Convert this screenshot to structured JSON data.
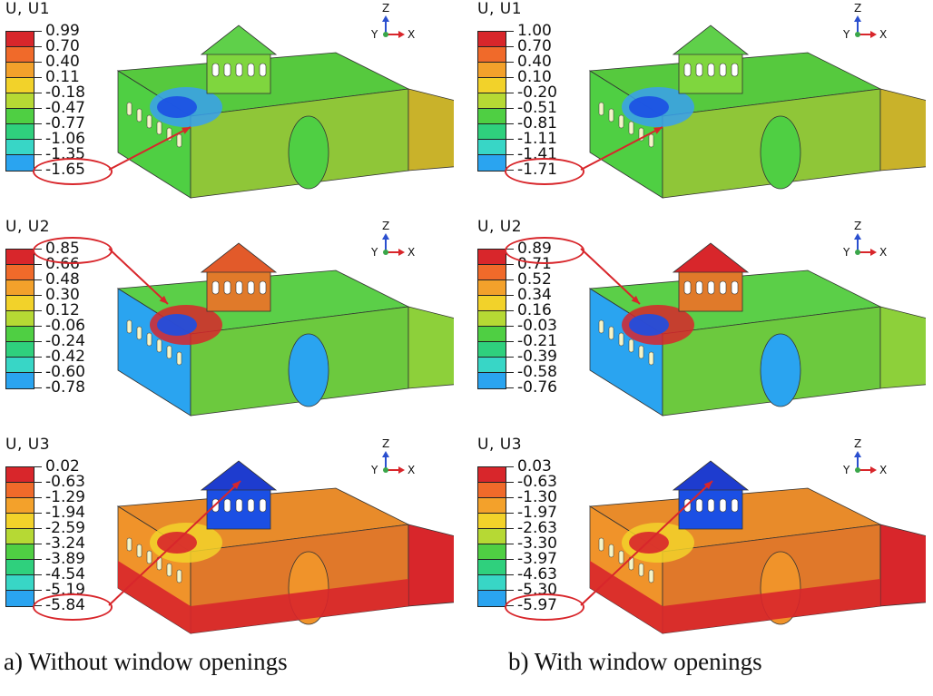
{
  "colors": {
    "scale": [
      "#d8262b",
      "#f06a2a",
      "#f3a12b",
      "#f2d22a",
      "#b6d934",
      "#4fcf43",
      "#2fd07d",
      "#38d6c6",
      "#2aa4f0",
      "#1b4fe4"
    ],
    "annotation": "#d8262b"
  },
  "axis": {
    "z": "Z",
    "y": "Y",
    "x": "X"
  },
  "panels": [
    {
      "id": "a1",
      "title": "U, U1",
      "values": [
        "0.99",
        "0.70",
        "0.40",
        "0.11",
        "-0.18",
        "-0.47",
        "-0.77",
        "-1.06",
        "-1.35",
        "-1.65"
      ],
      "highlight": 9
    },
    {
      "id": "b1",
      "title": "U, U1",
      "values": [
        "1.00",
        "0.70",
        "0.40",
        "0.10",
        "-0.20",
        "-0.51",
        "-0.81",
        "-1.11",
        "-1.41",
        "-1.71"
      ],
      "highlight": 9
    },
    {
      "id": "a2",
      "title": "U, U2",
      "values": [
        "0.85",
        "0.66",
        "0.48",
        "0.30",
        "0.12",
        "-0.06",
        "-0.24",
        "-0.42",
        "-0.60",
        "-0.78"
      ],
      "highlight": 0
    },
    {
      "id": "b2",
      "title": "U, U2",
      "values": [
        "0.89",
        "0.71",
        "0.52",
        "0.34",
        "0.16",
        "-0.03",
        "-0.21",
        "-0.39",
        "-0.58",
        "-0.76"
      ],
      "highlight": 0
    },
    {
      "id": "a3",
      "title": "U, U3",
      "values": [
        "0.02",
        "-0.63",
        "-1.29",
        "-1.94",
        "-2.59",
        "-3.24",
        "-3.89",
        "-4.54",
        "-5.19",
        "-5.84"
      ],
      "highlight": 9
    },
    {
      "id": "b3",
      "title": "U, U3",
      "values": [
        "0.03",
        "-0.63",
        "-1.30",
        "-1.97",
        "-2.63",
        "-3.30",
        "-3.97",
        "-4.63",
        "-5.30",
        "-5.97"
      ],
      "highlight": 9
    }
  ],
  "captions": {
    "a": "a) Without window openings",
    "b": "b) With window openings"
  }
}
